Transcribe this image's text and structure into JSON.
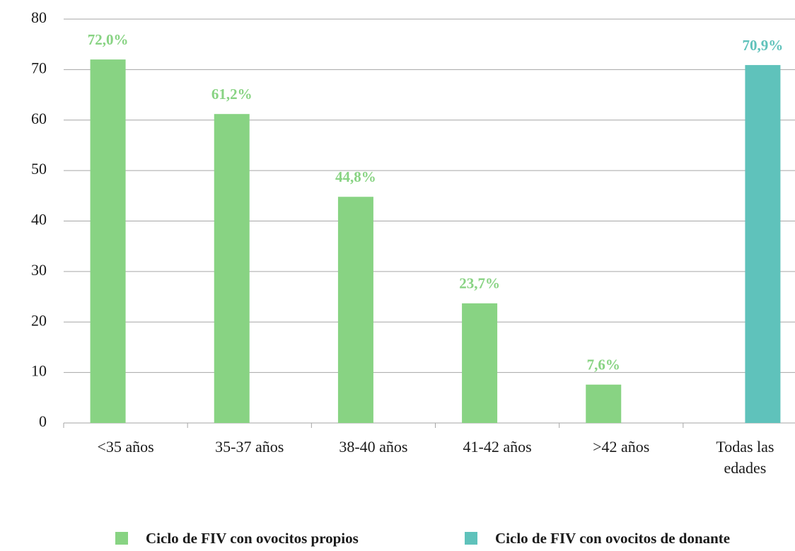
{
  "chart_data": {
    "type": "bar",
    "categories": [
      "<35 años",
      "35-37 años",
      "38-40 años",
      "41-42 años",
      ">42 años",
      "Todas las edades"
    ],
    "series": [
      {
        "name": "Ciclo de FIV con ovocitos propios",
        "color": "#88d383",
        "values": [
          72.0,
          61.2,
          44.8,
          23.7,
          7.6,
          null
        ],
        "value_labels": [
          "72,0%",
          "61,2%",
          "44,8%",
          "23,7%",
          "7,6%",
          null
        ]
      },
      {
        "name": "Ciclo de FIV con ovocitos de donante",
        "color": "#5fc2bb",
        "values": [
          null,
          null,
          null,
          null,
          null,
          70.9
        ],
        "value_labels": [
          null,
          null,
          null,
          null,
          null,
          "70,9%"
        ]
      }
    ],
    "ylim": [
      0,
      80
    ],
    "yticks": [
      0,
      10,
      20,
      30,
      40,
      50,
      60,
      70,
      80
    ],
    "grid": true,
    "legend": "bottom"
  }
}
